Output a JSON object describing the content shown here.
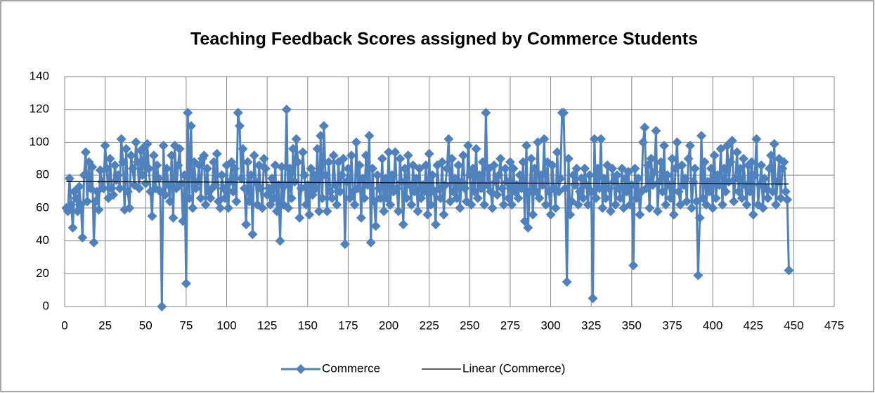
{
  "chart_data": {
    "type": "line",
    "title": "Teaching Feedback Scores assigned by Commerce Students",
    "xlim": [
      0,
      475
    ],
    "xticks": [
      0,
      25,
      50,
      75,
      100,
      125,
      150,
      175,
      200,
      225,
      250,
      275,
      300,
      325,
      350,
      375,
      400,
      425,
      450,
      475
    ],
    "ylim": [
      0,
      140
    ],
    "yticks": [
      0,
      20,
      40,
      60,
      80,
      100,
      120,
      140
    ],
    "grid": true,
    "legend": "bottom",
    "series": [
      {
        "name": "Commerce",
        "color": "#4f81bd",
        "marker": "diamond",
        "x": [
          1,
          2,
          3,
          4,
          5,
          6,
          7,
          8,
          9,
          10,
          11,
          12,
          13,
          14,
          15,
          16,
          17,
          18,
          19,
          20,
          21,
          22,
          23,
          24,
          25,
          26,
          27,
          28,
          29,
          30,
          31,
          32,
          33,
          34,
          35,
          36,
          37,
          38,
          39,
          40,
          41,
          42,
          43,
          44,
          45,
          46,
          47,
          48,
          49,
          50,
          51,
          52,
          53,
          54,
          55,
          56,
          57,
          58,
          59,
          60,
          61,
          62,
          63,
          64,
          65,
          66,
          67,
          68,
          69,
          70,
          71,
          72,
          73,
          74,
          75,
          76,
          77,
          78,
          79,
          80,
          81,
          82,
          83,
          84,
          85,
          86,
          87,
          88,
          89,
          90,
          91,
          92,
          93,
          94,
          95,
          96,
          97,
          98,
          99,
          100,
          101,
          102,
          103,
          104,
          105,
          106,
          107,
          108,
          109,
          110,
          111,
          112,
          113,
          114,
          115,
          116,
          117,
          118,
          119,
          120,
          121,
          122,
          123,
          124,
          125,
          126,
          127,
          128,
          129,
          130,
          131,
          132,
          133,
          134,
          135,
          136,
          137,
          138,
          139,
          140,
          141,
          142,
          143,
          144,
          145,
          146,
          147,
          148,
          149,
          150,
          151,
          152,
          153,
          154,
          155,
          156,
          157,
          158,
          159,
          160,
          161,
          162,
          163,
          164,
          165,
          166,
          167,
          168,
          169,
          170,
          171,
          172,
          173,
          174,
          175,
          176,
          177,
          178,
          179,
          180,
          181,
          182,
          183,
          184,
          185,
          186,
          187,
          188,
          189,
          190,
          191,
          192,
          193,
          194,
          195,
          196,
          197,
          198,
          199,
          200,
          201,
          202,
          203,
          204,
          205,
          206,
          207,
          208,
          209,
          210,
          211,
          212,
          213,
          214,
          215,
          216,
          217,
          218,
          219,
          220,
          221,
          222,
          223,
          224,
          225,
          226,
          227,
          228,
          229,
          230,
          231,
          232,
          233,
          234,
          235,
          236,
          237,
          238,
          239,
          240,
          241,
          242,
          243,
          244,
          245,
          246,
          247,
          248,
          249,
          250,
          251,
          252,
          253,
          254,
          255,
          256,
          257,
          258,
          259,
          260,
          261,
          262,
          263,
          264,
          265,
          266,
          267,
          268,
          269,
          270,
          271,
          272,
          273,
          274,
          275,
          276,
          277,
          278,
          279,
          280,
          281,
          282,
          283,
          284,
          285,
          286,
          287,
          288,
          289,
          290,
          291,
          292,
          293,
          294,
          295,
          296,
          297,
          298,
          299,
          300,
          301,
          302,
          303,
          304,
          305,
          306,
          307,
          308,
          309,
          310,
          311,
          312,
          313,
          314,
          315,
          316,
          317,
          318,
          319,
          320,
          321,
          322,
          323,
          324,
          325,
          326,
          327,
          328,
          329,
          330,
          331,
          332,
          333,
          334,
          335,
          336,
          337,
          338,
          339,
          340,
          341,
          342,
          343,
          344,
          345,
          346,
          347,
          348,
          349,
          350,
          351,
          352,
          353,
          354,
          355,
          356,
          357,
          358,
          359,
          360,
          361,
          362,
          363,
          364,
          365,
          366,
          367,
          368,
          369,
          370,
          371,
          372,
          373,
          374,
          375,
          376,
          377,
          378,
          379,
          380,
          381,
          382,
          383,
          384,
          385,
          386,
          387,
          388,
          389,
          390,
          391,
          392,
          393,
          394,
          395,
          396,
          397,
          398,
          399,
          400,
          401,
          402,
          403,
          404,
          405,
          406,
          407,
          408,
          409,
          410,
          411,
          412,
          413,
          414,
          415,
          416,
          417,
          418,
          419,
          420,
          421,
          422,
          423,
          424,
          425,
          426,
          427,
          428,
          429,
          430,
          431,
          432,
          433,
          434,
          435,
          436,
          437,
          438,
          439,
          440,
          441,
          442,
          443,
          444,
          445,
          446,
          447
        ],
        "values": [
          60,
          58,
          78,
          62,
          48,
          70,
          66,
          58,
          73,
          62,
          42,
          80,
          94,
          64,
          88,
          72,
          85,
          39,
          64,
          70,
          59,
          83,
          76,
          72,
          98,
          84,
          66,
          90,
          72,
          68,
          86,
          77,
          80,
          72,
          102,
          88,
          59,
          96,
          70,
          60,
          92,
          84,
          74,
          100,
          88,
          72,
          95,
          80,
          97,
          75,
          99,
          84,
          70,
          55,
          92,
          72,
          86,
          78,
          70,
          0,
          98,
          68,
          84,
          74,
          64,
          92,
          54,
          98,
          72,
          86,
          96,
          75,
          52,
          80,
          14,
          118,
          66,
          110,
          60,
          88,
          72,
          76,
          86,
          66,
          90,
          92,
          62,
          84,
          70,
          66,
          72,
          88,
          74,
          93,
          64,
          60,
          80,
          72,
          66,
          86,
          60,
          76,
          88,
          70,
          84,
          64,
          118,
          110,
          78,
          96,
          72,
          50,
          88,
          64,
          80,
          44,
          92,
          76,
          62,
          86,
          72,
          60,
          90,
          84,
          68,
          72,
          62,
          78,
          66,
          86,
          58,
          74,
          40,
          85,
          62,
          74,
          120,
          60,
          84,
          66,
          96,
          76,
          102,
          88,
          54,
          72,
          94,
          80,
          62,
          74,
          56,
          84,
          68,
          80,
          72,
          96,
          58,
          104,
          66,
          110,
          80,
          58,
          88,
          70,
          66,
          92,
          74,
          62,
          88,
          70,
          80,
          90,
          38,
          76,
          84,
          66,
          92,
          70,
          62,
          100,
          72,
          86,
          54,
          78,
          66,
          92,
          74,
          104,
          39,
          84,
          64,
          49,
          80,
          72,
          66,
          90,
          58,
          78,
          66,
          94,
          62,
          80,
          70,
          94,
          72,
          58,
          90,
          76,
          50,
          84,
          66,
          92,
          74,
          62,
          86,
          70,
          78,
          58,
          84,
          66,
          74,
          70,
          86,
          56,
          93,
          62,
          80,
          70,
          50,
          86,
          72,
          66,
          88,
          56,
          74,
          84,
          102,
          64,
          90,
          70,
          78,
          66,
          86,
          60,
          76,
          92,
          72,
          64,
          98,
          80,
          62,
          84,
          70,
          96,
          66,
          80,
          72,
          88,
          62,
          118,
          74,
          84,
          70,
          60,
          86,
          76,
          68,
          80,
          90,
          72,
          62,
          84,
          76,
          66,
          88,
          62,
          84,
          70,
          74,
          66,
          80,
          72,
          88,
          52,
          98,
          48,
          70,
          90,
          56,
          84,
          70,
          100,
          66,
          80,
          74,
          102,
          62,
          88,
          70,
          56,
          86,
          72,
          60,
          94,
          70,
          78,
          118,
          118,
          72,
          15,
          90,
          56,
          64,
          80,
          74,
          84,
          62,
          70,
          78,
          66,
          84,
          74,
          62,
          80,
          70,
          5,
          102,
          66,
          84,
          72,
          102,
          60,
          78,
          66,
          86,
          72,
          58,
          84,
          76,
          62,
          80,
          72,
          66,
          84,
          60,
          78,
          70,
          82,
          62,
          74,
          25,
          84,
          66,
          78,
          56,
          70,
          100,
          109,
          72,
          86,
          60,
          90,
          74,
          82,
          107,
          58,
          76,
          88,
          70,
          98,
          62,
          80,
          74,
          66,
          90,
          56,
          84,
          100,
          70,
          62,
          86,
          74,
          78,
          64,
          90,
          98,
          60,
          76,
          84,
          64,
          19,
          54,
          104,
          66,
          88,
          62,
          76,
          70,
          84,
          60,
          92,
          66,
          80,
          74,
          96,
          62,
          84,
          70,
          98,
          76,
          88,
          101,
          64,
          78,
          94,
          70,
          84,
          66,
          90,
          74,
          62,
          86,
          70,
          88,
          56,
          80,
          102,
          62,
          74,
          86,
          60,
          78,
          72,
          66,
          84,
          92,
          70,
          99,
          62,
          76,
          90,
          66,
          84,
          88,
          70,
          65,
          22
        ]
      },
      {
        "name": "Linear (Commerce)",
        "color": "#000000",
        "x": [
          1,
          447
        ],
        "values": [
          76.1,
          74.6
        ]
      }
    ]
  }
}
